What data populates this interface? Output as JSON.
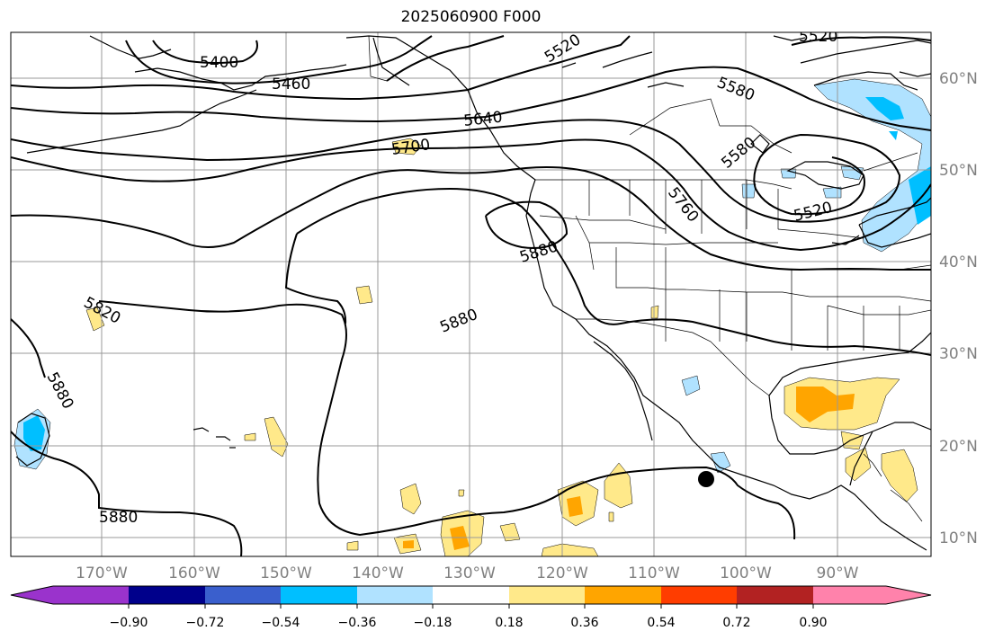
{
  "map": {
    "title": "2025060900 F000",
    "lat_labels": [
      "60°N",
      "50°N",
      "40°N",
      "30°N",
      "20°N",
      "10°N"
    ],
    "lon_labels": [
      "170°W",
      "160°W",
      "150°W",
      "140°W",
      "130°W",
      "120°W",
      "110°W",
      "100°W",
      "90°W"
    ],
    "contour_labels": [
      "5400",
      "5460",
      "5520",
      "5520",
      "5580",
      "5580",
      "5640",
      "5700",
      "5760",
      "5520",
      "5880",
      "5880",
      "5820",
      "5880",
      "5880"
    ],
    "storm_marker": "black-dot"
  },
  "colorbar": {
    "tick_labels": [
      "−0.90",
      "−0.72",
      "−0.54",
      "−0.36",
      "−0.18",
      "0.18",
      "0.36",
      "0.54",
      "0.72",
      "0.90"
    ],
    "colors": [
      "#9a33cc",
      "#00008b",
      "#3a5fcd",
      "#00bfff",
      "#b0e2ff",
      "#ffffff",
      "#ffe98a",
      "#ffa500",
      "#ff3d00",
      "#b22222",
      "#ff82ab"
    ]
  }
}
